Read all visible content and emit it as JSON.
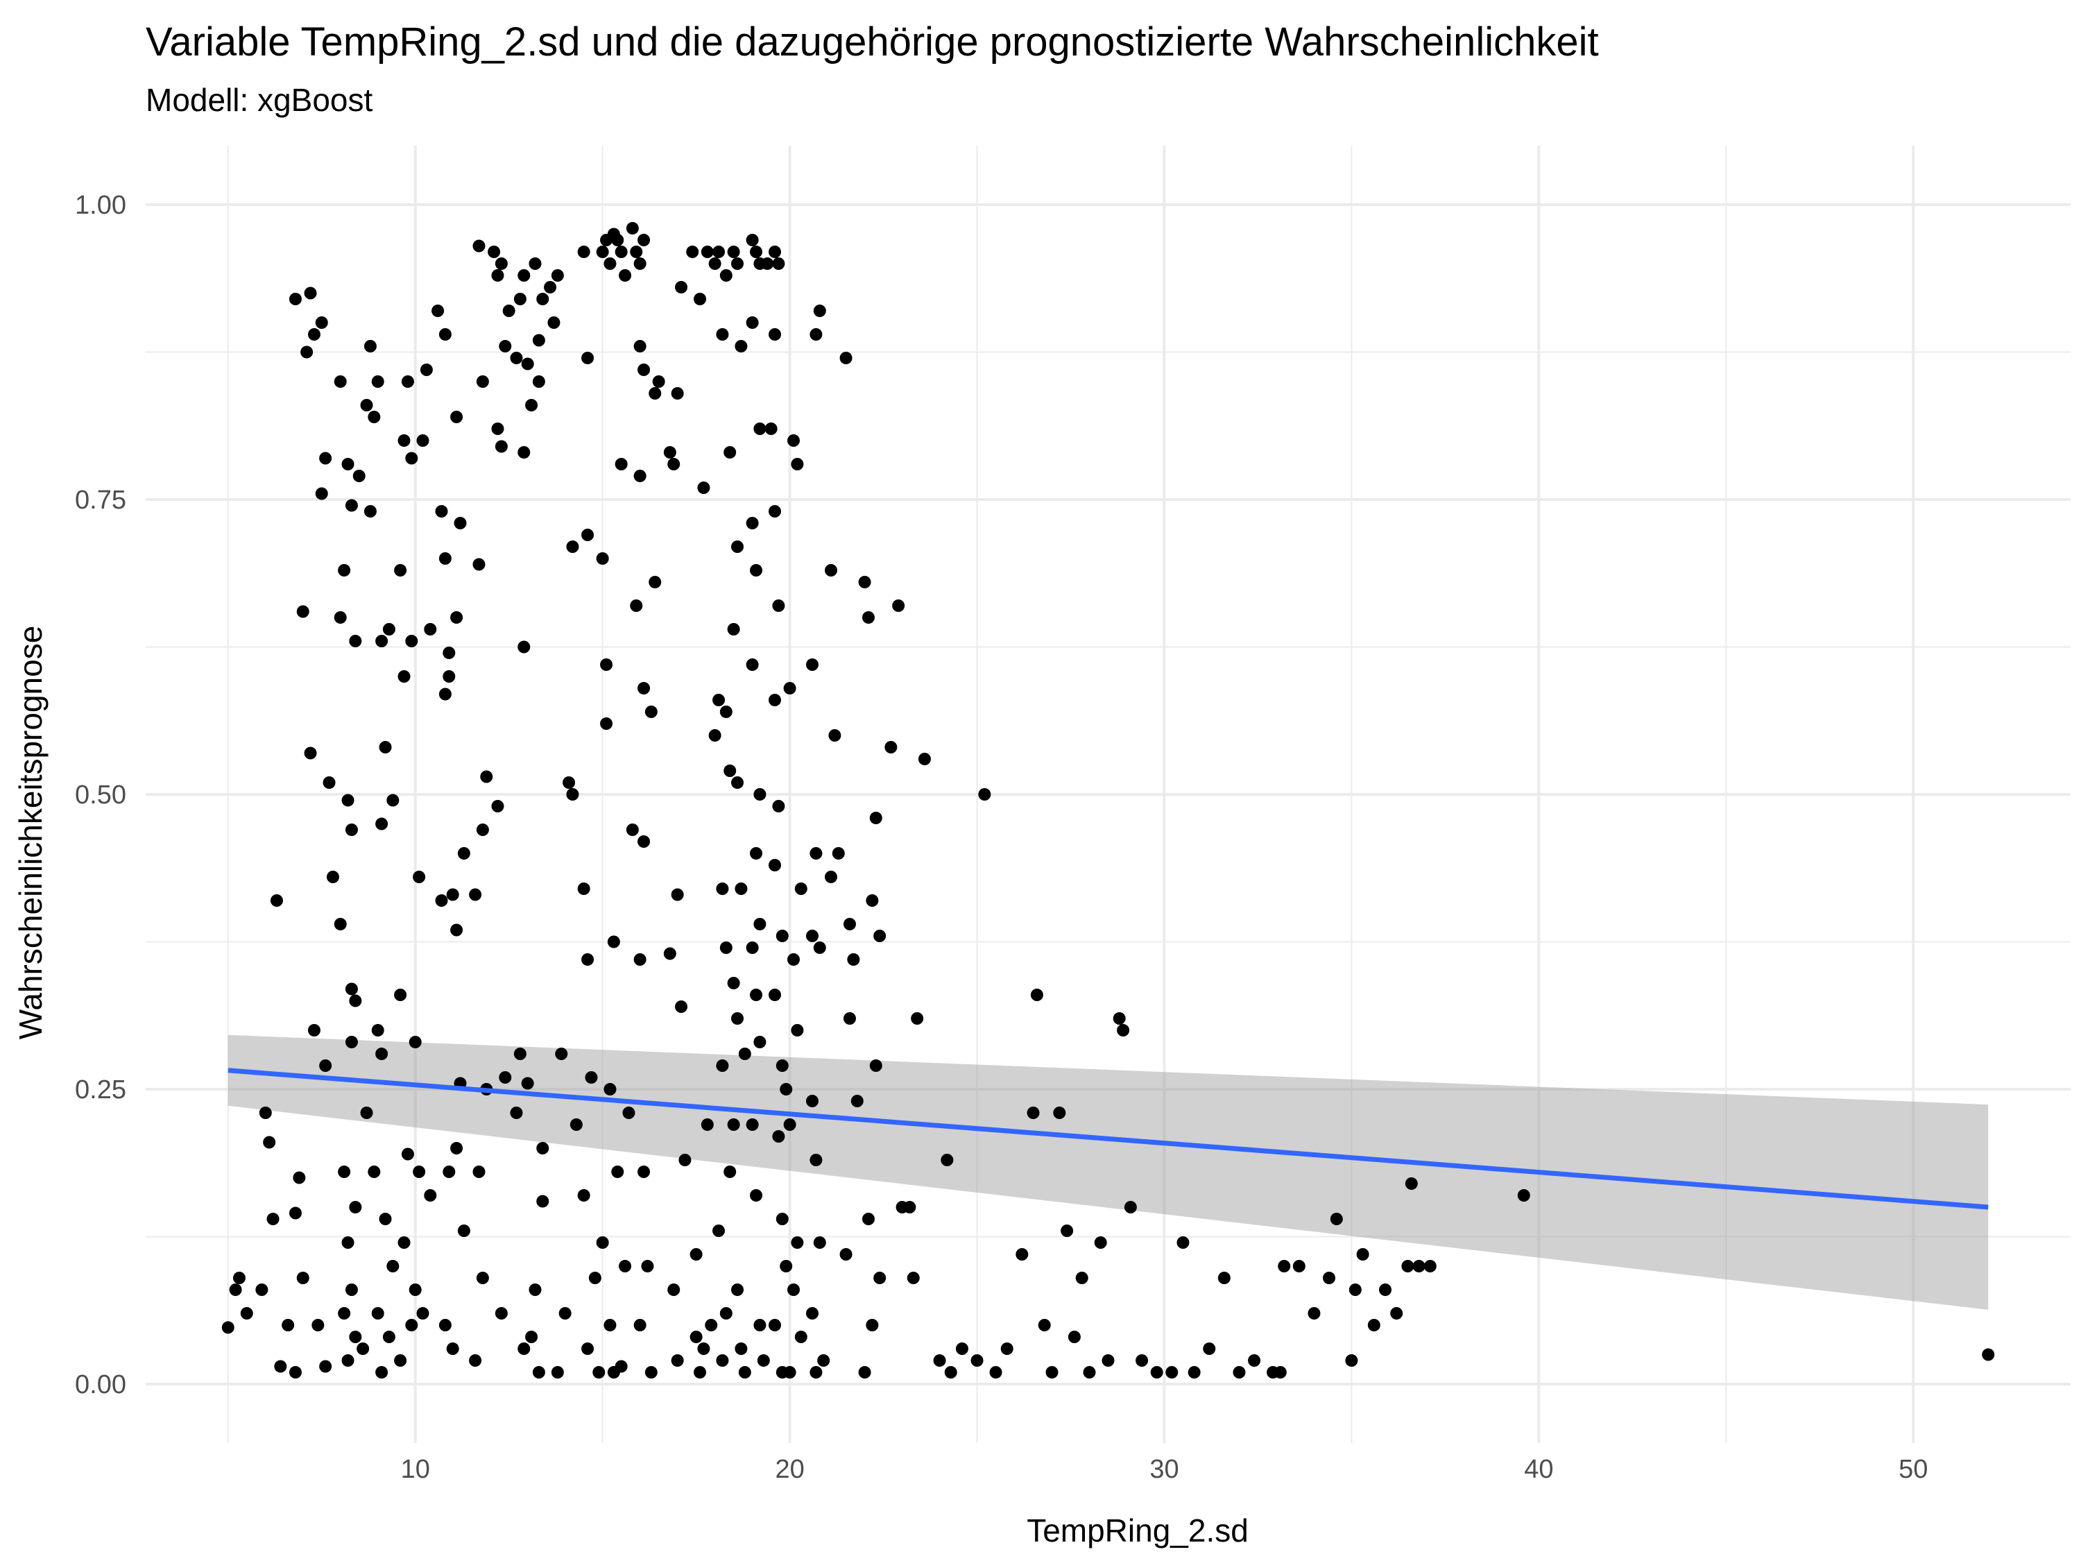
{
  "chart_data": {
    "type": "scatter",
    "title": "Variable TempRing_2.sd und die dazugehörige prognostizierte Wahrscheinlichkeit",
    "subtitle": "Modell: xgBoost",
    "xlabel": "TempRing_2.sd",
    "ylabel": "Wahrscheinlichkeitsprognose",
    "xlim": [
      2.8,
      54.2
    ],
    "ylim": [
      -0.05,
      1.05
    ],
    "xticks": [
      10,
      20,
      30,
      40,
      50
    ],
    "yticks": [
      0.0,
      0.25,
      0.5,
      0.75,
      1.0
    ],
    "xtick_labels": [
      "10",
      "20",
      "30",
      "40",
      "50"
    ],
    "ytick_labels": [
      "0.00",
      "0.25",
      "0.50",
      "0.75",
      "1.00"
    ],
    "grid": true,
    "legend": "none",
    "colors": {
      "points": "#000000",
      "fit_line": "#3366FF",
      "ribbon": "#999999",
      "grid": "#EBEBEB"
    },
    "trend": {
      "type": "linear",
      "x": [
        5.0,
        52.0
      ],
      "y": [
        0.266,
        0.15
      ],
      "ci_lower": [
        0.236,
        0.063
      ],
      "ci_upper": [
        0.296,
        0.237
      ]
    },
    "points": [
      [
        5.0,
        0.048
      ],
      [
        5.2,
        0.08
      ],
      [
        5.3,
        0.09
      ],
      [
        5.5,
        0.06
      ],
      [
        6.0,
        0.23
      ],
      [
        6.1,
        0.205
      ],
      [
        6.2,
        0.14
      ],
      [
        6.3,
        0.41
      ],
      [
        5.9,
        0.08
      ],
      [
        6.6,
        0.05
      ],
      [
        6.8,
        0.92
      ],
      [
        7.0,
        0.655
      ],
      [
        7.1,
        0.875
      ],
      [
        7.2,
        0.925
      ],
      [
        7.3,
        0.89
      ],
      [
        7.5,
        0.9
      ],
      [
        7.6,
        0.785
      ],
      [
        7.5,
        0.755
      ],
      [
        7.7,
        0.51
      ],
      [
        7.2,
        0.535
      ],
      [
        7.8,
        0.43
      ],
      [
        7.3,
        0.3
      ],
      [
        7.6,
        0.27
      ],
      [
        6.9,
        0.175
      ],
      [
        6.8,
        0.145
      ],
      [
        7.0,
        0.09
      ],
      [
        7.4,
        0.05
      ],
      [
        7.6,
        0.015
      ],
      [
        6.4,
        0.015
      ],
      [
        6.8,
        0.01
      ],
      [
        8.0,
        0.85
      ],
      [
        8.2,
        0.78
      ],
      [
        8.3,
        0.745
      ],
      [
        8.5,
        0.77
      ],
      [
        8.1,
        0.69
      ],
      [
        8.0,
        0.65
      ],
      [
        8.4,
        0.63
      ],
      [
        8.2,
        0.495
      ],
      [
        8.3,
        0.47
      ],
      [
        8.0,
        0.39
      ],
      [
        8.3,
        0.335
      ],
      [
        8.4,
        0.325
      ],
      [
        8.3,
        0.29
      ],
      [
        8.1,
        0.18
      ],
      [
        8.4,
        0.15
      ],
      [
        8.2,
        0.12
      ],
      [
        8.3,
        0.08
      ],
      [
        8.1,
        0.06
      ],
      [
        8.4,
        0.04
      ],
      [
        8.2,
        0.02
      ],
      [
        8.7,
        0.83
      ],
      [
        8.8,
        0.88
      ],
      [
        9.0,
        0.85
      ],
      [
        8.9,
        0.82
      ],
      [
        8.8,
        0.74
      ],
      [
        9.1,
        0.63
      ],
      [
        9.3,
        0.64
      ],
      [
        9.2,
        0.54
      ],
      [
        9.4,
        0.495
      ],
      [
        9.1,
        0.475
      ],
      [
        9.0,
        0.3
      ],
      [
        9.1,
        0.28
      ],
      [
        8.7,
        0.23
      ],
      [
        8.9,
        0.18
      ],
      [
        9.2,
        0.14
      ],
      [
        9.4,
        0.1
      ],
      [
        9.0,
        0.06
      ],
      [
        9.3,
        0.04
      ],
      [
        8.6,
        0.03
      ],
      [
        9.1,
        0.01
      ],
      [
        9.7,
        0.8
      ],
      [
        9.8,
        0.85
      ],
      [
        9.9,
        0.785
      ],
      [
        9.6,
        0.69
      ],
      [
        9.9,
        0.63
      ],
      [
        9.7,
        0.6
      ],
      [
        9.6,
        0.33
      ],
      [
        10.0,
        0.29
      ],
      [
        9.8,
        0.195
      ],
      [
        10.1,
        0.18
      ],
      [
        9.7,
        0.12
      ],
      [
        10.0,
        0.08
      ],
      [
        9.9,
        0.05
      ],
      [
        9.6,
        0.02
      ],
      [
        10.3,
        0.86
      ],
      [
        10.2,
        0.8
      ],
      [
        10.4,
        0.64
      ],
      [
        10.1,
        0.43
      ],
      [
        10.4,
        0.16
      ],
      [
        10.2,
        0.06
      ],
      [
        10.6,
        0.91
      ],
      [
        10.8,
        0.89
      ],
      [
        10.7,
        0.74
      ],
      [
        10.8,
        0.7
      ],
      [
        10.9,
        0.62
      ],
      [
        10.9,
        0.6
      ],
      [
        10.8,
        0.585
      ],
      [
        10.7,
        0.41
      ],
      [
        10.9,
        0.18
      ],
      [
        10.8,
        0.05
      ],
      [
        11.1,
        0.82
      ],
      [
        11.2,
        0.73
      ],
      [
        11.1,
        0.65
      ],
      [
        11.0,
        0.415
      ],
      [
        11.3,
        0.45
      ],
      [
        11.1,
        0.385
      ],
      [
        11.2,
        0.255
      ],
      [
        11.1,
        0.2
      ],
      [
        11.3,
        0.13
      ],
      [
        11.0,
        0.03
      ],
      [
        11.7,
        0.965
      ],
      [
        11.8,
        0.85
      ],
      [
        11.7,
        0.695
      ],
      [
        11.9,
        0.515
      ],
      [
        11.8,
        0.47
      ],
      [
        11.6,
        0.415
      ],
      [
        11.9,
        0.25
      ],
      [
        11.7,
        0.18
      ],
      [
        11.8,
        0.09
      ],
      [
        11.6,
        0.02
      ],
      [
        12.1,
        0.96
      ],
      [
        12.3,
        0.95
      ],
      [
        12.2,
        0.94
      ],
      [
        12.4,
        0.88
      ],
      [
        12.5,
        0.91
      ],
      [
        12.2,
        0.81
      ],
      [
        12.3,
        0.795
      ],
      [
        12.2,
        0.49
      ],
      [
        12.4,
        0.26
      ],
      [
        12.3,
        0.06
      ],
      [
        12.9,
        0.94
      ],
      [
        12.8,
        0.92
      ],
      [
        12.7,
        0.87
      ],
      [
        13.0,
        0.865
      ],
      [
        12.9,
        0.79
      ],
      [
        12.9,
        0.625
      ],
      [
        12.8,
        0.28
      ],
      [
        13.0,
        0.255
      ],
      [
        12.7,
        0.23
      ],
      [
        12.9,
        0.03
      ],
      [
        13.2,
        0.95
      ],
      [
        13.4,
        0.92
      ],
      [
        13.3,
        0.885
      ],
      [
        13.1,
        0.83
      ],
      [
        13.3,
        0.85
      ],
      [
        13.4,
        0.155
      ],
      [
        13.2,
        0.08
      ],
      [
        13.3,
        0.01
      ],
      [
        13.4,
        0.2
      ],
      [
        13.1,
        0.04
      ],
      [
        13.6,
        0.93
      ],
      [
        13.7,
        0.9
      ],
      [
        13.8,
        0.94
      ],
      [
        14.1,
        0.51
      ],
      [
        14.2,
        0.5
      ],
      [
        14.2,
        0.71
      ],
      [
        13.9,
        0.28
      ],
      [
        14.3,
        0.22
      ],
      [
        14.0,
        0.06
      ],
      [
        13.8,
        0.01
      ],
      [
        14.5,
        0.96
      ],
      [
        14.6,
        0.87
      ],
      [
        14.6,
        0.72
      ],
      [
        14.5,
        0.42
      ],
      [
        14.6,
        0.36
      ],
      [
        14.7,
        0.26
      ],
      [
        14.5,
        0.16
      ],
      [
        14.8,
        0.09
      ],
      [
        14.6,
        0.03
      ],
      [
        14.9,
        0.01
      ],
      [
        15.0,
        0.96
      ],
      [
        15.1,
        0.97
      ],
      [
        15.2,
        0.95
      ],
      [
        15.3,
        0.975
      ],
      [
        15.4,
        0.97
      ],
      [
        15.0,
        0.7
      ],
      [
        15.1,
        0.61
      ],
      [
        15.1,
        0.56
      ],
      [
        15.3,
        0.375
      ],
      [
        15.2,
        0.25
      ],
      [
        15.4,
        0.18
      ],
      [
        15.0,
        0.12
      ],
      [
        15.2,
        0.05
      ],
      [
        15.3,
        0.01
      ],
      [
        15.5,
        0.96
      ],
      [
        15.6,
        0.94
      ],
      [
        15.5,
        0.78
      ],
      [
        15.7,
        0.23
      ],
      [
        15.6,
        0.1
      ],
      [
        15.5,
        0.015
      ],
      [
        15.8,
        0.98
      ],
      [
        15.9,
        0.96
      ],
      [
        16.0,
        0.95
      ],
      [
        16.1,
        0.97
      ],
      [
        16.0,
        0.88
      ],
      [
        16.1,
        0.86
      ],
      [
        16.0,
        0.77
      ],
      [
        15.9,
        0.66
      ],
      [
        16.1,
        0.59
      ],
      [
        15.8,
        0.47
      ],
      [
        16.1,
        0.46
      ],
      [
        16.0,
        0.36
      ],
      [
        16.1,
        0.18
      ],
      [
        16.2,
        0.1
      ],
      [
        16.0,
        0.05
      ],
      [
        16.3,
        0.01
      ],
      [
        16.4,
        0.84
      ],
      [
        16.5,
        0.85
      ],
      [
        16.4,
        0.68
      ],
      [
        16.3,
        0.57
      ],
      [
        16.8,
        0.79
      ],
      [
        16.9,
        0.78
      ],
      [
        17.0,
        0.84
      ],
      [
        17.1,
        0.93
      ],
      [
        16.8,
        0.365
      ],
      [
        17.0,
        0.415
      ],
      [
        17.1,
        0.32
      ],
      [
        17.2,
        0.19
      ],
      [
        16.9,
        0.08
      ],
      [
        17.0,
        0.02
      ],
      [
        17.4,
        0.96
      ],
      [
        17.6,
        0.92
      ],
      [
        17.5,
        0.11
      ],
      [
        17.8,
        0.96
      ],
      [
        17.7,
        0.76
      ],
      [
        17.9,
        0.05
      ],
      [
        17.6,
        0.01
      ],
      [
        17.8,
        0.22
      ],
      [
        17.5,
        0.04
      ],
      [
        17.7,
        0.03
      ],
      [
        18.0,
        0.95
      ],
      [
        18.1,
        0.96
      ],
      [
        18.2,
        0.89
      ],
      [
        18.3,
        0.94
      ],
      [
        18.4,
        0.79
      ],
      [
        18.1,
        0.58
      ],
      [
        18.3,
        0.57
      ],
      [
        18.2,
        0.42
      ],
      [
        18.0,
        0.55
      ],
      [
        18.4,
        0.52
      ],
      [
        18.3,
        0.37
      ],
      [
        18.2,
        0.27
      ],
      [
        18.4,
        0.18
      ],
      [
        18.1,
        0.13
      ],
      [
        18.3,
        0.06
      ],
      [
        18.2,
        0.02
      ],
      [
        18.5,
        0.96
      ],
      [
        18.6,
        0.95
      ],
      [
        18.7,
        0.88
      ],
      [
        18.6,
        0.71
      ],
      [
        18.5,
        0.64
      ],
      [
        18.6,
        0.51
      ],
      [
        18.7,
        0.42
      ],
      [
        18.5,
        0.34
      ],
      [
        18.6,
        0.31
      ],
      [
        18.8,
        0.28
      ],
      [
        18.5,
        0.22
      ],
      [
        18.6,
        0.08
      ],
      [
        18.7,
        0.03
      ],
      [
        18.8,
        0.01
      ],
      [
        19.0,
        0.97
      ],
      [
        19.1,
        0.96
      ],
      [
        19.2,
        0.95
      ],
      [
        19.0,
        0.9
      ],
      [
        19.2,
        0.81
      ],
      [
        19.0,
        0.73
      ],
      [
        19.1,
        0.69
      ],
      [
        19.0,
        0.61
      ],
      [
        19.2,
        0.5
      ],
      [
        19.1,
        0.45
      ],
      [
        19.2,
        0.39
      ],
      [
        19.0,
        0.37
      ],
      [
        19.1,
        0.33
      ],
      [
        19.2,
        0.29
      ],
      [
        19.0,
        0.22
      ],
      [
        19.1,
        0.16
      ],
      [
        19.2,
        0.05
      ],
      [
        19.3,
        0.02
      ],
      [
        19.4,
        0.95
      ],
      [
        19.5,
        0.81
      ],
      [
        19.6,
        0.96
      ],
      [
        19.7,
        0.95
      ],
      [
        19.6,
        0.89
      ],
      [
        19.6,
        0.74
      ],
      [
        19.7,
        0.66
      ],
      [
        19.6,
        0.58
      ],
      [
        19.7,
        0.49
      ],
      [
        19.6,
        0.44
      ],
      [
        19.8,
        0.38
      ],
      [
        19.6,
        0.33
      ],
      [
        19.8,
        0.27
      ],
      [
        19.9,
        0.25
      ],
      [
        19.7,
        0.21
      ],
      [
        19.8,
        0.14
      ],
      [
        19.9,
        0.1
      ],
      [
        19.6,
        0.05
      ],
      [
        19.8,
        0.01
      ],
      [
        20.1,
        0.8
      ],
      [
        20.2,
        0.78
      ],
      [
        20.0,
        0.59
      ],
      [
        20.3,
        0.42
      ],
      [
        20.1,
        0.36
      ],
      [
        20.2,
        0.3
      ],
      [
        20.0,
        0.22
      ],
      [
        20.2,
        0.12
      ],
      [
        20.1,
        0.08
      ],
      [
        20.3,
        0.04
      ],
      [
        20.0,
        0.01
      ],
      [
        20.7,
        0.89
      ],
      [
        20.8,
        0.91
      ],
      [
        20.6,
        0.61
      ],
      [
        20.7,
        0.45
      ],
      [
        20.6,
        0.38
      ],
      [
        20.8,
        0.37
      ],
      [
        20.6,
        0.24
      ],
      [
        20.7,
        0.19
      ],
      [
        20.8,
        0.12
      ],
      [
        20.6,
        0.06
      ],
      [
        20.9,
        0.02
      ],
      [
        20.7,
        0.01
      ],
      [
        21.1,
        0.69
      ],
      [
        21.2,
        0.55
      ],
      [
        21.3,
        0.45
      ],
      [
        21.1,
        0.43
      ],
      [
        21.5,
        0.87
      ],
      [
        21.6,
        0.39
      ],
      [
        21.7,
        0.36
      ],
      [
        21.6,
        0.31
      ],
      [
        21.8,
        0.24
      ],
      [
        21.5,
        0.11
      ],
      [
        22.0,
        0.68
      ],
      [
        22.1,
        0.65
      ],
      [
        22.3,
        0.48
      ],
      [
        22.2,
        0.41
      ],
      [
        22.4,
        0.38
      ],
      [
        22.3,
        0.27
      ],
      [
        22.1,
        0.14
      ],
      [
        22.4,
        0.09
      ],
      [
        22.2,
        0.05
      ],
      [
        22.0,
        0.01
      ],
      [
        22.9,
        0.66
      ],
      [
        22.7,
        0.54
      ],
      [
        23.0,
        0.15
      ],
      [
        23.2,
        0.15
      ],
      [
        23.4,
        0.31
      ],
      [
        23.3,
        0.09
      ],
      [
        23.6,
        0.53
      ],
      [
        24.2,
        0.19
      ],
      [
        24.0,
        0.02
      ],
      [
        24.3,
        0.01
      ],
      [
        24.6,
        0.03
      ],
      [
        25.0,
        0.02
      ],
      [
        25.2,
        0.5
      ],
      [
        25.5,
        0.01
      ],
      [
        25.8,
        0.03
      ],
      [
        26.2,
        0.11
      ],
      [
        26.5,
        0.23
      ],
      [
        26.6,
        0.33
      ],
      [
        26.8,
        0.05
      ],
      [
        27.0,
        0.01
      ],
      [
        27.2,
        0.23
      ],
      [
        27.4,
        0.13
      ],
      [
        27.6,
        0.04
      ],
      [
        27.8,
        0.09
      ],
      [
        28.0,
        0.01
      ],
      [
        28.3,
        0.12
      ],
      [
        28.5,
        0.02
      ],
      [
        28.8,
        0.31
      ],
      [
        28.9,
        0.3
      ],
      [
        29.1,
        0.15
      ],
      [
        29.4,
        0.02
      ],
      [
        29.8,
        0.01
      ],
      [
        30.2,
        0.01
      ],
      [
        30.5,
        0.12
      ],
      [
        30.8,
        0.01
      ],
      [
        31.2,
        0.03
      ],
      [
        31.6,
        0.09
      ],
      [
        32.0,
        0.01
      ],
      [
        32.4,
        0.02
      ],
      [
        32.9,
        0.01
      ],
      [
        33.1,
        0.01
      ],
      [
        33.2,
        0.1
      ],
      [
        33.6,
        0.1
      ],
      [
        34.0,
        0.06
      ],
      [
        34.4,
        0.09
      ],
      [
        34.6,
        0.14
      ],
      [
        35.0,
        0.02
      ],
      [
        35.1,
        0.08
      ],
      [
        35.3,
        0.11
      ],
      [
        35.6,
        0.05
      ],
      [
        35.9,
        0.08
      ],
      [
        36.2,
        0.06
      ],
      [
        36.5,
        0.1
      ],
      [
        36.6,
        0.17
      ],
      [
        36.8,
        0.1
      ],
      [
        37.1,
        0.1
      ],
      [
        39.6,
        0.16
      ],
      [
        52.0,
        0.025
      ]
    ]
  }
}
